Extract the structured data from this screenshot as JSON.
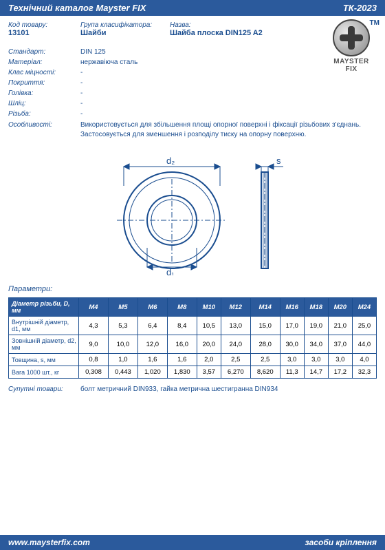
{
  "header": {
    "title": "Технічний каталог Mayster FIX",
    "code": "ТК-2023",
    "colors": {
      "band_bg": "#2b5a9c",
      "band_text": "#ffffff"
    }
  },
  "logo": {
    "brand1": "MAYSTER",
    "brand2": "FIX",
    "tm": "TM"
  },
  "product": {
    "code_label": "Код товару:",
    "code": "13101",
    "group_label": "Група класифікатора:",
    "group": "Шайби",
    "name_label": "Назва:",
    "name": "Шайба плоска DIN125 A2"
  },
  "specs": [
    {
      "label": "Стандарт:",
      "value": "DIN 125"
    },
    {
      "label": "Матеріал:",
      "value": "нержавіюча сталь"
    },
    {
      "label": "Клас міцності:",
      "value": "-"
    },
    {
      "label": "Покриття:",
      "value": "-"
    },
    {
      "label": "Голівка:",
      "value": "-"
    },
    {
      "label": "Шліц:",
      "value": "-"
    },
    {
      "label": "Різьба:",
      "value": "-"
    }
  ],
  "description": {
    "label": "Особливості:",
    "text": "Використовується  для збільшення площі опорної поверхні і фіксації різьбових з'єднань. Застосовується для зменшення і розподілу тиску на опорну поверхню."
  },
  "diagram": {
    "d2": "d₂",
    "d1": "d₁",
    "s": "s"
  },
  "params_title": "Параметри:",
  "table": {
    "header_bg": "#2b5a9c",
    "border_color": "#1a4d8f",
    "corner": "Діаметр різьби, D, мм",
    "columns": [
      "M4",
      "M5",
      "M6",
      "M8",
      "M10",
      "M12",
      "M14",
      "M16",
      "M18",
      "M20",
      "M24"
    ],
    "rows": [
      {
        "label": "Внутрішній діаметр, d1, мм",
        "values": [
          "4,3",
          "5,3",
          "6,4",
          "8,4",
          "10,5",
          "13,0",
          "15,0",
          "17,0",
          "19,0",
          "21,0",
          "25,0"
        ]
      },
      {
        "label": "Зовнішній діаметр, d2, мм",
        "values": [
          "9,0",
          "10,0",
          "12,0",
          "16,0",
          "20,0",
          "24,0",
          "28,0",
          "30,0",
          "34,0",
          "37,0",
          "44,0"
        ]
      },
      {
        "label": "Товщина, s, мм",
        "values": [
          "0,8",
          "1,0",
          "1,6",
          "1,6",
          "2,0",
          "2,5",
          "2,5",
          "3,0",
          "3,0",
          "3,0",
          "4,0"
        ]
      },
      {
        "label": "Вага 1000 шт., кг",
        "values": [
          "0,308",
          "0,443",
          "1,020",
          "1,830",
          "3,57",
          "6,270",
          "8,620",
          "11,3",
          "14,7",
          "17,2",
          "32,3"
        ]
      }
    ]
  },
  "related": {
    "label": "Супутні товари:",
    "text": "болт метричний DIN933, гайка метрична шестигранна DIN934"
  },
  "footer": {
    "url": "www.maysterfix.com",
    "tagline": "засоби кріплення"
  },
  "theme": {
    "text_color": "#1a4d8f",
    "page_bg": "#ffffff"
  }
}
